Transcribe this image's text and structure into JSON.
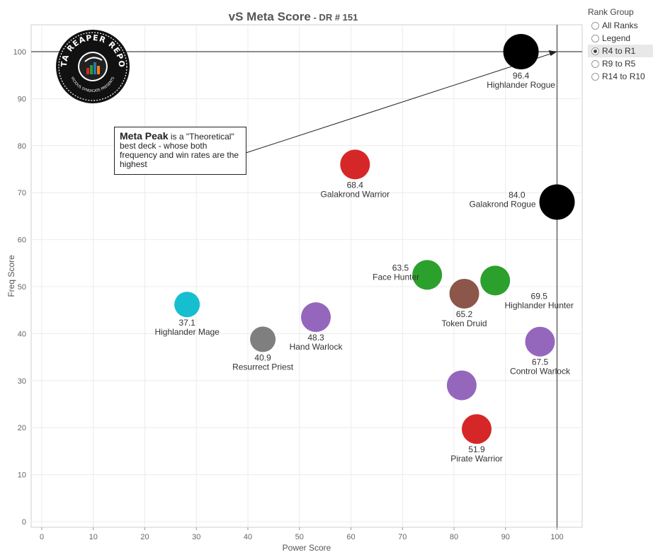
{
  "header": {
    "title": "vS Meta Score",
    "subtitle": " - DR # 151"
  },
  "rank_group": {
    "title": "Rank Group",
    "options": [
      "All Ranks",
      "Legend",
      "R4 to R1",
      "R9 to R5",
      "R14 to R10"
    ],
    "selected": "R4 to R1"
  },
  "callout": {
    "bold": "Meta Peak",
    "text": " is a \"Theoretical\" best deck - whose both frequency and win rates are the highest"
  },
  "logo": {
    "text_top": "DATA REAPER REPORT",
    "text_bottom": "VICIOUS SYNDICATE PRESENTS"
  },
  "colors": {
    "rogue": "#000000",
    "warrior": "#d62728",
    "hunter": "#2ca02c",
    "druid": "#8c564b",
    "warlock": "#9467bd",
    "mage": "#17becf",
    "priest": "#7f7f7f"
  },
  "chart_data": {
    "type": "scatter",
    "xlabel": "Power Score",
    "ylabel": "Freq Score",
    "xlim": [
      0,
      105
    ],
    "ylim": [
      -2,
      105
    ],
    "xticks": [
      0,
      10,
      20,
      30,
      40,
      50,
      60,
      70,
      80,
      90,
      100
    ],
    "yticks": [
      0,
      10,
      20,
      30,
      40,
      50,
      60,
      70,
      80,
      90,
      100
    ],
    "grid": true,
    "reference_lines": {
      "x": 100,
      "y": 100
    },
    "points": [
      {
        "name": "Highlander Rogue",
        "score": "96.4",
        "x": 93,
        "y": 100,
        "color": "rogue",
        "label_pos": "below"
      },
      {
        "name": "Galakrond Rogue",
        "score": "84.0",
        "x": 100,
        "y": 68,
        "color": "rogue",
        "label_pos": "left"
      },
      {
        "name": "Galakrond Warrior",
        "score": "68.4",
        "x": 60.8,
        "y": 76,
        "color": "warrior",
        "label_pos": "below"
      },
      {
        "name": "Face Hunter",
        "score": "63.5",
        "x": 74.8,
        "y": 52.5,
        "color": "hunter",
        "label_pos": "left"
      },
      {
        "name": "Highlander Hunter",
        "score": "69.5",
        "x": 88,
        "y": 51.3,
        "color": "hunter",
        "label_pos": "below-right"
      },
      {
        "name": "Token Druid",
        "score": "65.2",
        "x": 82,
        "y": 48.5,
        "color": "druid",
        "label_pos": "below"
      },
      {
        "name": "Highlander Mage",
        "score": "37.1",
        "x": 28.2,
        "y": 46.2,
        "color": "mage",
        "label_pos": "below"
      },
      {
        "name": "Hand Warlock",
        "score": "48.3",
        "x": 53.2,
        "y": 43.5,
        "color": "warlock",
        "label_pos": "below"
      },
      {
        "name": "Resurrect Priest",
        "score": "40.9",
        "x": 42.9,
        "y": 38.8,
        "color": "priest",
        "label_pos": "below"
      },
      {
        "name": "Control Warlock",
        "score": "67.5",
        "x": 96.7,
        "y": 38.3,
        "color": "warlock",
        "label_pos": "below"
      },
      {
        "name": "",
        "score": "",
        "x": 81.5,
        "y": 29,
        "color": "warlock",
        "label_pos": "none"
      },
      {
        "name": "Pirate Warrior",
        "score": "51.9",
        "x": 84.4,
        "y": 19.7,
        "color": "warrior",
        "label_pos": "below"
      }
    ]
  }
}
